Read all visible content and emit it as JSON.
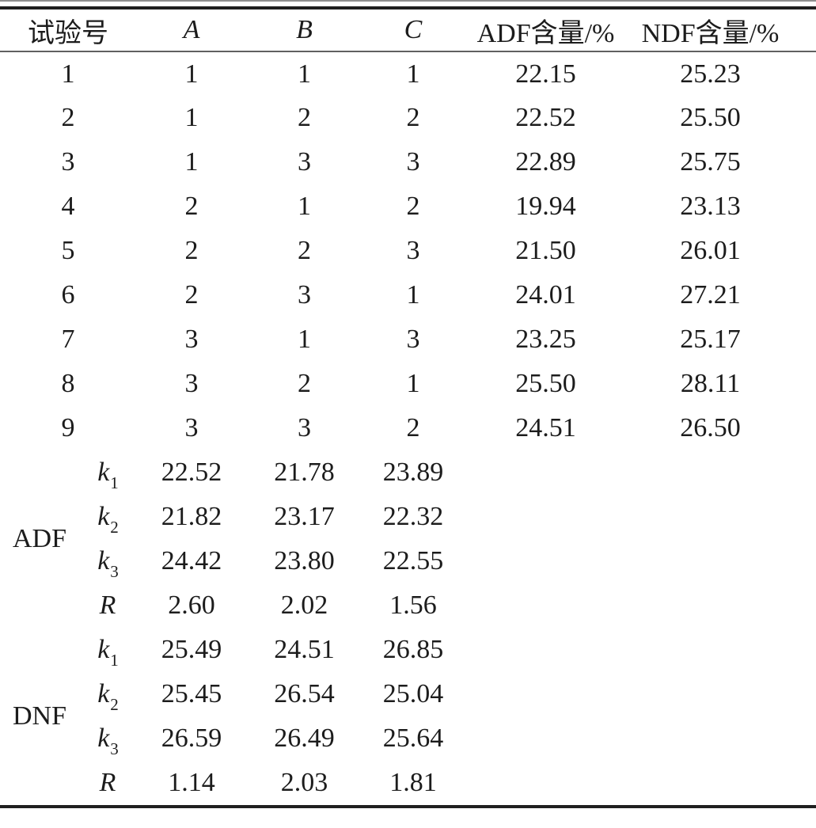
{
  "table": {
    "header": {
      "col_trial": "试验号",
      "col_a": "A",
      "col_b": "B",
      "col_c": "C",
      "col_adf": "ADF含量/%",
      "col_ndf": "NDF含量/%"
    },
    "runs": [
      {
        "no": "1",
        "a": "1",
        "b": "1",
        "c": "1",
        "adf": "22.15",
        "ndf": "25.23"
      },
      {
        "no": "2",
        "a": "1",
        "b": "2",
        "c": "2",
        "adf": "22.52",
        "ndf": "25.50"
      },
      {
        "no": "3",
        "a": "1",
        "b": "3",
        "c": "3",
        "adf": "22.89",
        "ndf": "25.75"
      },
      {
        "no": "4",
        "a": "2",
        "b": "1",
        "c": "2",
        "adf": "19.94",
        "ndf": "23.13"
      },
      {
        "no": "5",
        "a": "2",
        "b": "2",
        "c": "3",
        "adf": "21.50",
        "ndf": "26.01"
      },
      {
        "no": "6",
        "a": "2",
        "b": "3",
        "c": "1",
        "adf": "24.01",
        "ndf": "27.21"
      },
      {
        "no": "7",
        "a": "3",
        "b": "1",
        "c": "3",
        "adf": "23.25",
        "ndf": "25.17"
      },
      {
        "no": "8",
        "a": "3",
        "b": "2",
        "c": "1",
        "adf": "25.50",
        "ndf": "28.11"
      },
      {
        "no": "9",
        "a": "3",
        "b": "3",
        "c": "2",
        "adf": "24.51",
        "ndf": "26.50"
      }
    ],
    "stats": [
      {
        "factor": "ADF",
        "rows": [
          {
            "label": "k",
            "sub": "1",
            "a": "22.52",
            "b": "21.78",
            "c": "23.89"
          },
          {
            "label": "k",
            "sub": "2",
            "a": "21.82",
            "b": "23.17",
            "c": "22.32"
          },
          {
            "label": "k",
            "sub": "3",
            "a": "24.42",
            "b": "23.80",
            "c": "22.55"
          },
          {
            "label": "R",
            "sub": "",
            "a": "2.60",
            "b": "2.02",
            "c": "1.56"
          }
        ]
      },
      {
        "factor": "DNF",
        "rows": [
          {
            "label": "k",
            "sub": "1",
            "a": "25.49",
            "b": "24.51",
            "c": "26.85"
          },
          {
            "label": "k",
            "sub": "2",
            "a": "25.45",
            "b": "26.54",
            "c": "25.04"
          },
          {
            "label": "k",
            "sub": "3",
            "a": "26.59",
            "b": "26.49",
            "c": "25.64"
          },
          {
            "label": "R",
            "sub": "",
            "a": "1.14",
            "b": "2.03",
            "c": "1.81"
          }
        ]
      }
    ]
  }
}
